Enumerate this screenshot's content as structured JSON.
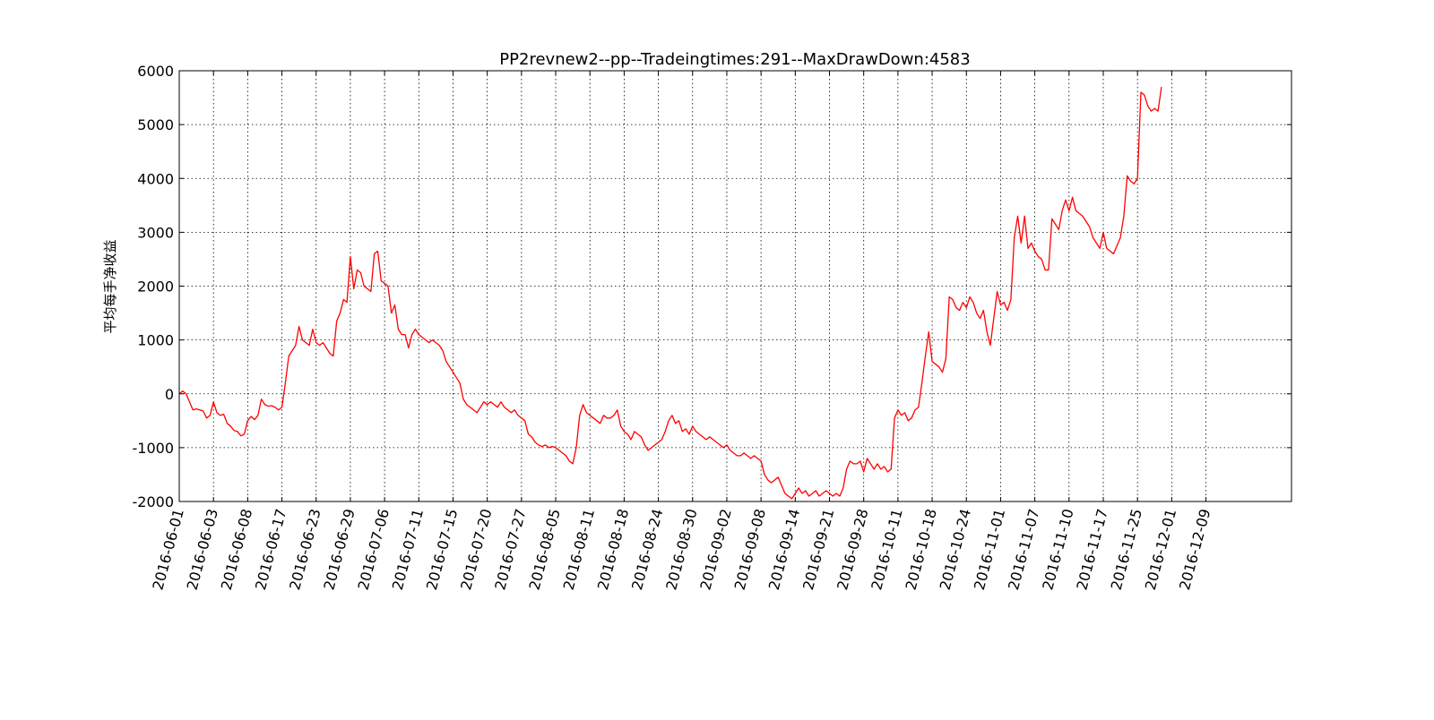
{
  "chart_data": {
    "type": "line",
    "title": "PP2revnew2--pp--Tradeingtimes:291--MaxDrawDown:4583",
    "xlabel": "",
    "ylabel": "平均每手净收益",
    "ylim": [
      -2000,
      6000
    ],
    "yticks": [
      -2000,
      -1000,
      0,
      1000,
      2000,
      3000,
      4000,
      5000,
      6000
    ],
    "xlim": [
      0,
      325
    ],
    "xticks": [
      0,
      10,
      20,
      30,
      40,
      50,
      60,
      70,
      80,
      90,
      100,
      110,
      120,
      130,
      140,
      150,
      160,
      170,
      180,
      190,
      200,
      210,
      220,
      230,
      240,
      250,
      260,
      270,
      280,
      290,
      300
    ],
    "xtick_labels": [
      "2016-06-01",
      "2016-06-03",
      "2016-06-08",
      "2016-06-17",
      "2016-06-23",
      "2016-06-29",
      "2016-07-06",
      "2016-07-11",
      "2016-07-15",
      "2016-07-20",
      "2016-07-27",
      "2016-08-05",
      "2016-08-11",
      "2016-08-18",
      "2016-08-24",
      "2016-08-30",
      "2016-09-02",
      "2016-09-08",
      "2016-09-14",
      "2016-09-21",
      "2016-09-28",
      "2016-10-11",
      "2016-10-18",
      "2016-10-24",
      "2016-11-01",
      "2016-11-07",
      "2016-11-10",
      "2016-11-17",
      "2016-11-25",
      "2016-12-01",
      "2016-12-09"
    ],
    "grid": true,
    "series": [
      {
        "name": "",
        "color": "#ff0000",
        "points": [
          [
            0,
            0
          ],
          [
            1,
            50
          ],
          [
            2,
            0
          ],
          [
            3,
            -150
          ],
          [
            4,
            -300
          ],
          [
            5,
            -280
          ],
          [
            6,
            -300
          ],
          [
            7,
            -320
          ],
          [
            8,
            -450
          ],
          [
            9,
            -400
          ],
          [
            10,
            -150
          ],
          [
            11,
            -350
          ],
          [
            12,
            -400
          ],
          [
            13,
            -380
          ],
          [
            14,
            -550
          ],
          [
            15,
            -600
          ],
          [
            16,
            -680
          ],
          [
            17,
            -700
          ],
          [
            18,
            -780
          ],
          [
            19,
            -750
          ],
          [
            20,
            -500
          ],
          [
            21,
            -420
          ],
          [
            22,
            -480
          ],
          [
            23,
            -400
          ],
          [
            24,
            -100
          ],
          [
            25,
            -200
          ],
          [
            26,
            -230
          ],
          [
            27,
            -220
          ],
          [
            28,
            -250
          ],
          [
            29,
            -300
          ],
          [
            30,
            -250
          ],
          [
            31,
            200
          ],
          [
            32,
            700
          ],
          [
            33,
            800
          ],
          [
            34,
            900
          ],
          [
            35,
            1250
          ],
          [
            36,
            1000
          ],
          [
            37,
            950
          ],
          [
            38,
            900
          ],
          [
            39,
            1200
          ],
          [
            40,
            950
          ],
          [
            41,
            900
          ],
          [
            42,
            950
          ],
          [
            43,
            850
          ],
          [
            44,
            750
          ],
          [
            45,
            700
          ],
          [
            46,
            1350
          ],
          [
            47,
            1500
          ],
          [
            48,
            1750
          ],
          [
            49,
            1700
          ],
          [
            50,
            2550
          ],
          [
            51,
            1950
          ],
          [
            52,
            2300
          ],
          [
            53,
            2250
          ],
          [
            54,
            2000
          ],
          [
            55,
            1950
          ],
          [
            56,
            1900
          ],
          [
            57,
            2600
          ],
          [
            58,
            2650
          ],
          [
            59,
            2100
          ],
          [
            60,
            2050
          ],
          [
            61,
            2000
          ],
          [
            62,
            1500
          ],
          [
            63,
            1650
          ],
          [
            64,
            1200
          ],
          [
            65,
            1100
          ],
          [
            66,
            1100
          ],
          [
            67,
            850
          ],
          [
            68,
            1100
          ],
          [
            69,
            1200
          ],
          [
            70,
            1100
          ],
          [
            71,
            1050
          ],
          [
            72,
            1000
          ],
          [
            73,
            950
          ],
          [
            74,
            1000
          ],
          [
            75,
            950
          ],
          [
            76,
            900
          ],
          [
            77,
            800
          ],
          [
            78,
            600
          ],
          [
            79,
            500
          ],
          [
            80,
            400
          ],
          [
            81,
            300
          ],
          [
            82,
            200
          ],
          [
            83,
            -100
          ],
          [
            84,
            -200
          ],
          [
            85,
            -250
          ],
          [
            86,
            -300
          ],
          [
            87,
            -350
          ],
          [
            88,
            -250
          ],
          [
            89,
            -150
          ],
          [
            90,
            -200
          ],
          [
            91,
            -150
          ],
          [
            92,
            -200
          ],
          [
            93,
            -250
          ],
          [
            94,
            -150
          ],
          [
            95,
            -250
          ],
          [
            96,
            -300
          ],
          [
            97,
            -350
          ],
          [
            98,
            -300
          ],
          [
            99,
            -400
          ],
          [
            100,
            -450
          ],
          [
            101,
            -500
          ],
          [
            102,
            -750
          ],
          [
            103,
            -800
          ],
          [
            104,
            -900
          ],
          [
            105,
            -950
          ],
          [
            106,
            -980
          ],
          [
            107,
            -950
          ],
          [
            108,
            -1000
          ],
          [
            109,
            -980
          ],
          [
            110,
            -1000
          ],
          [
            111,
            -1050
          ],
          [
            112,
            -1100
          ],
          [
            113,
            -1150
          ],
          [
            114,
            -1250
          ],
          [
            115,
            -1300
          ],
          [
            116,
            -1000
          ],
          [
            117,
            -400
          ],
          [
            118,
            -200
          ],
          [
            119,
            -350
          ],
          [
            120,
            -400
          ],
          [
            121,
            -450
          ],
          [
            122,
            -500
          ],
          [
            123,
            -550
          ],
          [
            124,
            -400
          ],
          [
            125,
            -450
          ],
          [
            126,
            -450
          ],
          [
            127,
            -400
          ],
          [
            128,
            -300
          ],
          [
            129,
            -600
          ],
          [
            130,
            -700
          ],
          [
            131,
            -750
          ],
          [
            132,
            -850
          ],
          [
            133,
            -700
          ],
          [
            134,
            -750
          ],
          [
            135,
            -800
          ],
          [
            136,
            -950
          ],
          [
            137,
            -1050
          ],
          [
            138,
            -1000
          ],
          [
            139,
            -950
          ],
          [
            140,
            -900
          ],
          [
            141,
            -850
          ],
          [
            142,
            -700
          ],
          [
            143,
            -500
          ],
          [
            144,
            -400
          ],
          [
            145,
            -550
          ],
          [
            146,
            -500
          ],
          [
            147,
            -700
          ],
          [
            148,
            -650
          ],
          [
            149,
            -750
          ],
          [
            150,
            -600
          ],
          [
            151,
            -700
          ],
          [
            152,
            -750
          ],
          [
            153,
            -800
          ],
          [
            154,
            -850
          ],
          [
            155,
            -800
          ],
          [
            156,
            -850
          ],
          [
            157,
            -900
          ],
          [
            158,
            -950
          ],
          [
            159,
            -1000
          ],
          [
            160,
            -950
          ],
          [
            161,
            -1050
          ],
          [
            162,
            -1100
          ],
          [
            163,
            -1150
          ],
          [
            164,
            -1150
          ],
          [
            165,
            -1100
          ],
          [
            166,
            -1150
          ],
          [
            167,
            -1200
          ],
          [
            168,
            -1150
          ],
          [
            169,
            -1200
          ],
          [
            170,
            -1250
          ],
          [
            171,
            -1500
          ],
          [
            172,
            -1600
          ],
          [
            173,
            -1650
          ],
          [
            174,
            -1600
          ],
          [
            175,
            -1550
          ],
          [
            176,
            -1700
          ],
          [
            177,
            -1850
          ],
          [
            178,
            -1900
          ],
          [
            179,
            -1950
          ],
          [
            180,
            -1850
          ],
          [
            181,
            -1750
          ],
          [
            182,
            -1850
          ],
          [
            183,
            -1800
          ],
          [
            184,
            -1900
          ],
          [
            185,
            -1850
          ],
          [
            186,
            -1800
          ],
          [
            187,
            -1900
          ],
          [
            188,
            -1850
          ],
          [
            189,
            -1800
          ],
          [
            190,
            -1850
          ],
          [
            191,
            -1900
          ],
          [
            192,
            -1850
          ],
          [
            193,
            -1900
          ],
          [
            194,
            -1750
          ],
          [
            195,
            -1400
          ],
          [
            196,
            -1250
          ],
          [
            197,
            -1300
          ],
          [
            198,
            -1300
          ],
          [
            199,
            -1250
          ],
          [
            200,
            -1450
          ],
          [
            201,
            -1200
          ],
          [
            202,
            -1300
          ],
          [
            203,
            -1400
          ],
          [
            204,
            -1300
          ],
          [
            205,
            -1400
          ],
          [
            206,
            -1350
          ],
          [
            207,
            -1450
          ],
          [
            208,
            -1400
          ],
          [
            209,
            -450
          ],
          [
            210,
            -300
          ],
          [
            211,
            -400
          ],
          [
            212,
            -350
          ],
          [
            213,
            -500
          ],
          [
            214,
            -450
          ],
          [
            215,
            -300
          ],
          [
            216,
            -250
          ],
          [
            217,
            200
          ],
          [
            218,
            700
          ],
          [
            219,
            1150
          ],
          [
            220,
            600
          ],
          [
            221,
            550
          ],
          [
            222,
            500
          ],
          [
            223,
            400
          ],
          [
            224,
            650
          ],
          [
            225,
            1800
          ],
          [
            226,
            1750
          ],
          [
            227,
            1600
          ],
          [
            228,
            1550
          ],
          [
            229,
            1700
          ],
          [
            230,
            1600
          ],
          [
            231,
            1800
          ],
          [
            232,
            1700
          ],
          [
            233,
            1500
          ],
          [
            234,
            1400
          ],
          [
            235,
            1550
          ],
          [
            236,
            1150
          ],
          [
            237,
            900
          ],
          [
            238,
            1400
          ],
          [
            239,
            1900
          ],
          [
            240,
            1650
          ],
          [
            241,
            1700
          ],
          [
            242,
            1550
          ],
          [
            243,
            1750
          ],
          [
            244,
            2900
          ],
          [
            245,
            3300
          ],
          [
            246,
            2800
          ],
          [
            247,
            3300
          ],
          [
            248,
            2700
          ],
          [
            249,
            2800
          ],
          [
            250,
            2650
          ],
          [
            251,
            2550
          ],
          [
            252,
            2500
          ],
          [
            253,
            2300
          ],
          [
            254,
            2300
          ],
          [
            255,
            3250
          ],
          [
            256,
            3150
          ],
          [
            257,
            3050
          ],
          [
            258,
            3400
          ],
          [
            259,
            3600
          ],
          [
            260,
            3400
          ],
          [
            261,
            3650
          ],
          [
            262,
            3400
          ],
          [
            263,
            3350
          ],
          [
            264,
            3300
          ],
          [
            265,
            3200
          ],
          [
            266,
            3100
          ],
          [
            267,
            2900
          ],
          [
            268,
            2800
          ],
          [
            269,
            2700
          ],
          [
            270,
            3000
          ],
          [
            271,
            2700
          ],
          [
            272,
            2650
          ],
          [
            273,
            2600
          ],
          [
            274,
            2750
          ],
          [
            275,
            2900
          ],
          [
            276,
            3300
          ],
          [
            277,
            4050
          ],
          [
            278,
            3950
          ],
          [
            279,
            3900
          ],
          [
            280,
            4000
          ],
          [
            281,
            5600
          ],
          [
            282,
            5550
          ],
          [
            283,
            5350
          ],
          [
            284,
            5250
          ],
          [
            285,
            5300
          ],
          [
            286,
            5250
          ],
          [
            287,
            5700
          ]
        ]
      }
    ]
  }
}
